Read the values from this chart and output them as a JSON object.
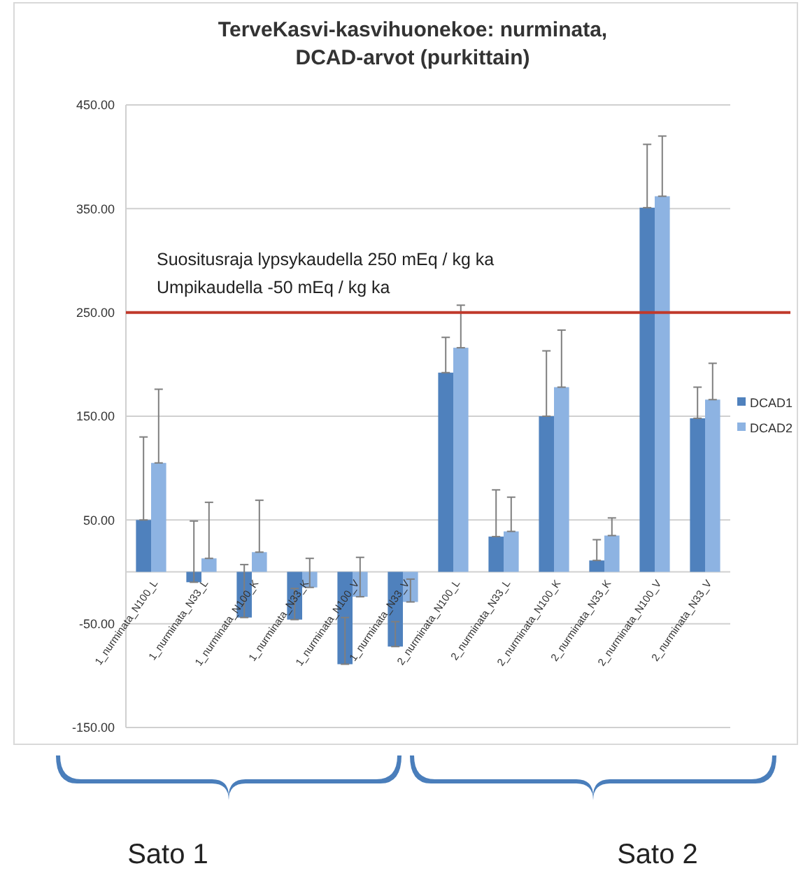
{
  "chart_data": {
    "type": "bar",
    "title": "TerveKasvi-kasvihuonekoe: nurminata, DCAD-arvot (purkittain)",
    "categories": [
      "1_nurminata_N100_L",
      "1_nurminata_N33_L",
      "1_nurminata_N100_K",
      "1_nurminata_N33_K",
      "1_nurminata_N100_V",
      "1_nurminata_N33_V",
      "2_nurminata_N100_L",
      "2_nurminata_N33_L",
      "2_nurminata_N100_K",
      "2_nurminata_N33_K",
      "2_nurminata_N100_V",
      "2_nurminata_N33_V"
    ],
    "series": [
      {
        "name": "DCAD1",
        "color": "#4f81bd",
        "values": [
          50,
          -10,
          -44,
          -46,
          -89,
          -72,
          192,
          34,
          150,
          11,
          351,
          148
        ],
        "errors": [
          [
            50,
            130
          ],
          [
            -10,
            49
          ],
          [
            -44,
            7
          ],
          [
            -46,
            -16
          ],
          [
            -89,
            -44
          ],
          [
            -72,
            -48
          ],
          [
            192,
            226
          ],
          [
            34,
            79
          ],
          [
            150,
            213
          ],
          [
            11,
            31
          ],
          [
            351,
            412
          ],
          [
            148,
            178
          ]
        ]
      },
      {
        "name": "DCAD2",
        "color": "#8db3e2",
        "values": [
          105,
          13,
          19,
          -15,
          -24,
          -29,
          216,
          39,
          178,
          35,
          362,
          166
        ],
        "errors": [
          [
            105,
            176
          ],
          [
            13,
            67
          ],
          [
            19,
            69
          ],
          [
            -15,
            13
          ],
          [
            -24,
            14
          ],
          [
            -29,
            -7
          ],
          [
            216,
            257
          ],
          [
            39,
            72
          ],
          [
            178,
            233
          ],
          [
            35,
            52
          ],
          [
            362,
            420
          ],
          [
            166,
            201
          ]
        ]
      }
    ],
    "ylim": [
      -150,
      450
    ],
    "yticks": [
      {
        "value": -150,
        "label": "-150.00"
      },
      {
        "value": -50,
        "label": "-50.00"
      },
      {
        "value": 50,
        "label": "50.00"
      },
      {
        "value": 150,
        "label": "150.00"
      },
      {
        "value": 250,
        "label": "250.00"
      },
      {
        "value": 350,
        "label": "350.00"
      },
      {
        "value": 450,
        "label": "450.00"
      }
    ],
    "grid": "y",
    "legend": "right",
    "ref_lines": [
      {
        "axis": "y",
        "value": 250,
        "color": "#c0392b"
      }
    ],
    "annotations": [
      "Suositusraja lypsykaudella 250 mEq / kg ka",
      "Umpikaudella -50 mEq / kg ka",
      "Sato 1",
      "Sato 2"
    ]
  }
}
